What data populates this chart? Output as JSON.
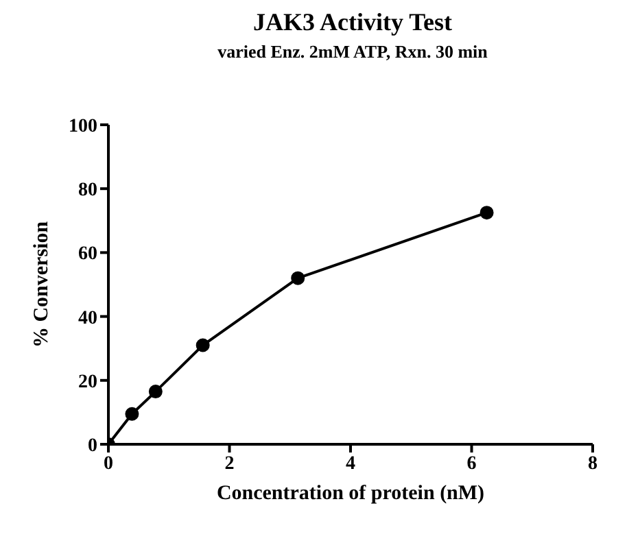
{
  "chart_data": {
    "type": "line",
    "title": "JAK3 Activity Test",
    "subtitle": "varied Enz. 2mM ATP, Rxn. 30 min",
    "xlabel": "Concentration of protein (nM)",
    "ylabel": "% Conversion",
    "x": [
      0,
      0.39,
      0.78,
      1.56,
      3.13,
      6.25
    ],
    "series": [
      {
        "color": "#000000",
        "values": [
          0,
          9.5,
          16.5,
          31,
          52,
          72.5
        ]
      }
    ],
    "xlim": [
      0,
      8
    ],
    "xticks": [
      0,
      2,
      4,
      6,
      8
    ],
    "ylim": [
      0,
      100
    ],
    "yticks": [
      0,
      20,
      40,
      60,
      80,
      100
    ],
    "grid": false,
    "legend": false,
    "marker": "circle",
    "line_style": "solid"
  }
}
